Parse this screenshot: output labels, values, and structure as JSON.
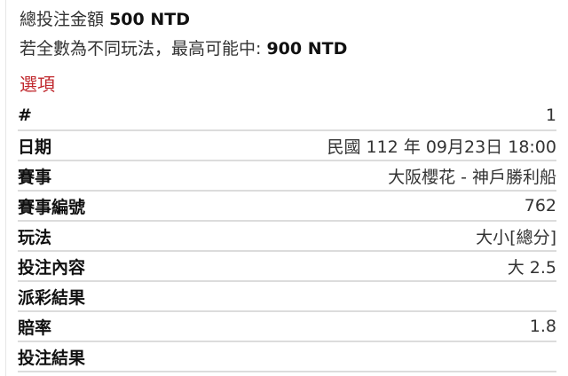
{
  "summary": {
    "total_label": "總投注金額",
    "total_value": "500 NTD",
    "max_label": "若全數為不同玩法，最高可能中:",
    "max_value": "900 NTD"
  },
  "section_title": "選項",
  "colors": {
    "section_title": "#c0282d"
  },
  "rows": [
    {
      "label": "#",
      "value": "1"
    },
    {
      "label": "日期",
      "value": "民國 112 年 09月23日 18:00"
    },
    {
      "label": "賽事",
      "value": "大阪櫻花 - 神戶勝利船"
    },
    {
      "label": "賽事編號",
      "value": "762"
    },
    {
      "label": "玩法",
      "value": "大小[總分]"
    },
    {
      "label": "投注內容",
      "value": "大 2.5"
    },
    {
      "label": "派彩結果",
      "value": ""
    },
    {
      "label": "賠率",
      "value": "1.8"
    },
    {
      "label": "投注結果",
      "value": ""
    }
  ]
}
